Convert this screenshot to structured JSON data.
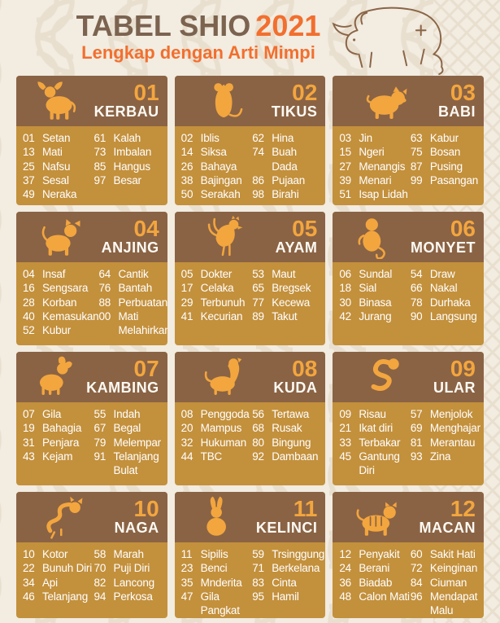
{
  "header": {
    "title_main": "TABEL SHIO",
    "title_year": "2021",
    "subtitle": "Lengkap dengan Arti Mimpi",
    "ox_illustration": "ox-line-drawing"
  },
  "colors": {
    "page_background": "#f2ece1",
    "pattern_line": "#e9dfcf",
    "card_header_brown": "#8a6345",
    "card_body_gold": "#c3903c",
    "number_orange": "#f3a63e",
    "title_brown": "#7b6350",
    "title_orange": "#f26f2e",
    "body_text": "#ffffff"
  },
  "cards": [
    {
      "number": "01",
      "name": "KERBAU",
      "icon": "ox-icon",
      "left": [
        {
          "num": "01",
          "word": "Setan"
        },
        {
          "num": "13",
          "word": "Mati"
        },
        {
          "num": "25",
          "word": "Nafsu"
        },
        {
          "num": "37",
          "word": "Sesal"
        },
        {
          "num": "49",
          "word": "Neraka"
        }
      ],
      "right": [
        {
          "num": "61",
          "word": "Kalah"
        },
        {
          "num": "73",
          "word": "Imbalan"
        },
        {
          "num": "85",
          "word": "Hangus"
        },
        {
          "num": "97",
          "word": "Besar"
        }
      ]
    },
    {
      "number": "02",
      "name": "TIKUS",
      "icon": "rat-icon",
      "left": [
        {
          "num": "02",
          "word": "Iblis"
        },
        {
          "num": "14",
          "word": "Siksa"
        },
        {
          "num": "26",
          "word": "Bahaya"
        },
        {
          "num": "38",
          "word": "Bajingan"
        },
        {
          "num": "50",
          "word": "Serakah"
        }
      ],
      "right": [
        {
          "num": "62",
          "word": "Hina"
        },
        {
          "num": "74",
          "word": "Buah Dada"
        },
        {
          "num": "86",
          "word": "Pujaan"
        },
        {
          "num": "98",
          "word": "Birahi"
        }
      ]
    },
    {
      "number": "03",
      "name": "BABI",
      "icon": "pig-icon",
      "left": [
        {
          "num": "03",
          "word": "Jin"
        },
        {
          "num": "15",
          "word": "Ngeri"
        },
        {
          "num": "27",
          "word": "Menangis"
        },
        {
          "num": "39",
          "word": "Menari"
        },
        {
          "num": "51",
          "word": "Isap Lidah"
        }
      ],
      "right": [
        {
          "num": "63",
          "word": "Kabur"
        },
        {
          "num": "75",
          "word": "Bosan"
        },
        {
          "num": "87",
          "word": "Pusing"
        },
        {
          "num": "99",
          "word": "Pasangan"
        }
      ]
    },
    {
      "number": "04",
      "name": "ANJING",
      "icon": "dog-icon",
      "left": [
        {
          "num": "04",
          "word": "Insaf"
        },
        {
          "num": "16",
          "word": "Sengsara"
        },
        {
          "num": "28",
          "word": "Korban"
        },
        {
          "num": "40",
          "word": "Kemasukan"
        },
        {
          "num": "52",
          "word": "Kubur"
        }
      ],
      "right": [
        {
          "num": "64",
          "word": "Cantik"
        },
        {
          "num": "76",
          "word": "Bantah"
        },
        {
          "num": "88",
          "word": "Perbuatan"
        },
        {
          "num": "00",
          "word": "Mati Melahirkan"
        }
      ]
    },
    {
      "number": "05",
      "name": "AYAM",
      "icon": "rooster-icon",
      "left": [
        {
          "num": "05",
          "word": "Dokter"
        },
        {
          "num": "17",
          "word": "Celaka"
        },
        {
          "num": "29",
          "word": "Terbunuh"
        },
        {
          "num": "41",
          "word": "Kecurian"
        }
      ],
      "right": [
        {
          "num": "53",
          "word": "Maut"
        },
        {
          "num": "65",
          "word": "Bregsek"
        },
        {
          "num": "77",
          "word": "Kecewa"
        },
        {
          "num": "89",
          "word": "Takut"
        }
      ]
    },
    {
      "number": "06",
      "name": "MONYET",
      "icon": "monkey-icon",
      "left": [
        {
          "num": "06",
          "word": "Sundal"
        },
        {
          "num": "18",
          "word": "Sial"
        },
        {
          "num": "30",
          "word": "Binasa"
        },
        {
          "num": "42",
          "word": "Jurang"
        }
      ],
      "right": [
        {
          "num": "54",
          "word": "Draw"
        },
        {
          "num": "66",
          "word": "Nakal"
        },
        {
          "num": "78",
          "word": "Durhaka"
        },
        {
          "num": "90",
          "word": "Langsung"
        }
      ]
    },
    {
      "number": "07",
      "name": "KAMBING",
      "icon": "goat-icon",
      "left": [
        {
          "num": "07",
          "word": "Gila"
        },
        {
          "num": "19",
          "word": "Bahagia"
        },
        {
          "num": "31",
          "word": "Penjara"
        },
        {
          "num": "43",
          "word": "Kejam"
        }
      ],
      "right": [
        {
          "num": "55",
          "word": "Indah"
        },
        {
          "num": "67",
          "word": "Begal"
        },
        {
          "num": "79",
          "word": "Melempar"
        },
        {
          "num": "91",
          "word": "Telanjang Bulat"
        }
      ]
    },
    {
      "number": "08",
      "name": "KUDA",
      "icon": "horse-icon",
      "left": [
        {
          "num": "08",
          "word": "Penggoda"
        },
        {
          "num": "20",
          "word": "Mampus"
        },
        {
          "num": "32",
          "word": "Hukuman"
        },
        {
          "num": "44",
          "word": "TBC"
        }
      ],
      "right": [
        {
          "num": "56",
          "word": "Tertawa"
        },
        {
          "num": "68",
          "word": "Rusak"
        },
        {
          "num": "80",
          "word": "Bingung"
        },
        {
          "num": "92",
          "word": "Dambaan"
        }
      ]
    },
    {
      "number": "09",
      "name": "ULAR",
      "icon": "snake-icon",
      "left": [
        {
          "num": "09",
          "word": "Risau"
        },
        {
          "num": "21",
          "word": "Ikat diri"
        },
        {
          "num": "33",
          "word": "Terbakar"
        },
        {
          "num": "45",
          "word": "Gantung Diri"
        }
      ],
      "right": [
        {
          "num": "57",
          "word": "Menjolok"
        },
        {
          "num": "69",
          "word": "Menghajar"
        },
        {
          "num": "81",
          "word": "Merantau"
        },
        {
          "num": "93",
          "word": "Zina"
        }
      ]
    },
    {
      "number": "10",
      "name": "NAGA",
      "icon": "dragon-icon",
      "left": [
        {
          "num": "10",
          "word": "Kotor"
        },
        {
          "num": "22",
          "word": "Bunuh Diri"
        },
        {
          "num": "34",
          "word": "Api"
        },
        {
          "num": "46",
          "word": "Telanjang"
        }
      ],
      "right": [
        {
          "num": "58",
          "word": "Marah"
        },
        {
          "num": "70",
          "word": "Puji Diri"
        },
        {
          "num": "82",
          "word": "Lancong"
        },
        {
          "num": "94",
          "word": "Perkosa"
        }
      ]
    },
    {
      "number": "11",
      "name": "KELINCI",
      "icon": "rabbit-icon",
      "left": [
        {
          "num": "11",
          "word": "Sipilis"
        },
        {
          "num": "23",
          "word": "Benci"
        },
        {
          "num": "35",
          "word": "Mnderita"
        },
        {
          "num": "47",
          "word": "Gila Pangkat"
        }
      ],
      "right": [
        {
          "num": "59",
          "word": "Trsinggung"
        },
        {
          "num": "71",
          "word": "Berkelana"
        },
        {
          "num": "83",
          "word": "Cinta"
        },
        {
          "num": "95",
          "word": "Hamil"
        }
      ]
    },
    {
      "number": "12",
      "name": "MACAN",
      "icon": "tiger-icon",
      "left": [
        {
          "num": "12",
          "word": "Penyakit"
        },
        {
          "num": "24",
          "word": "Berani"
        },
        {
          "num": "36",
          "word": "Biadab"
        },
        {
          "num": "48",
          "word": "Calon Mati"
        }
      ],
      "right": [
        {
          "num": "60",
          "word": "Sakit Hati"
        },
        {
          "num": "72",
          "word": "Keinginan"
        },
        {
          "num": "84",
          "word": "Ciuman"
        },
        {
          "num": "96",
          "word": "Mendapat Malu"
        }
      ]
    }
  ]
}
